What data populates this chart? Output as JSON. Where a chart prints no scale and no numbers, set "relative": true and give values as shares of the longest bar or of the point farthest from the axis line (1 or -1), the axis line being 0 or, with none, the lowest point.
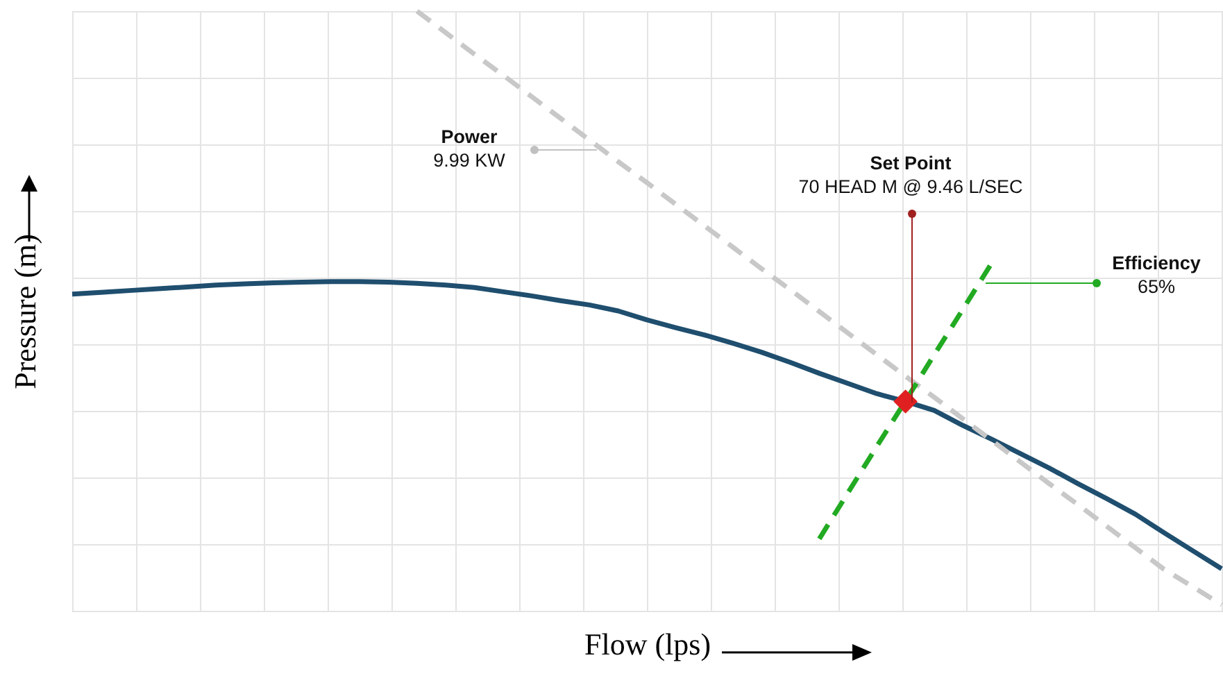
{
  "chart_data": {
    "type": "line",
    "relative": true,
    "xlabel": "Flow (lps)",
    "ylabel": "Pressure (m)",
    "grid": true,
    "categories": [
      null,
      null,
      null,
      null,
      null,
      null,
      null,
      null,
      null,
      null,
      null,
      null,
      null,
      null,
      null,
      null,
      null,
      null,
      null,
      null,
      null,
      null,
      null,
      null,
      null,
      null,
      null,
      null,
      null,
      null,
      null,
      null,
      null,
      null,
      null,
      null,
      null,
      null,
      null,
      null,
      null
    ],
    "series": [
      {
        "color": "#1f4e6e",
        "values": [
          0.528,
          0.531,
          0.534,
          0.537,
          0.54,
          0.543,
          0.545,
          0.547,
          0.548,
          0.549,
          0.549,
          0.548,
          0.546,
          0.543,
          0.539,
          0.532,
          0.525,
          0.517,
          0.51,
          0.5,
          0.485,
          0.472,
          0.46,
          0.446,
          0.431,
          0.414,
          0.396,
          0.379,
          0.362,
          0.349,
          0.334,
          0.309,
          0.286,
          0.262,
          0.238,
          0.212,
          0.187,
          0.161,
          0.13,
          0.1,
          0.07
        ]
      },
      {
        "line_style": "dashed",
        "color": "#c8c8c8",
        "values": [
          null,
          null,
          null,
          null,
          null,
          null,
          null,
          null,
          null,
          null,
          null,
          null,
          1,
          0.964,
          0.928,
          0.893,
          0.857,
          0.821,
          0.785,
          0.749,
          0.714,
          0.678,
          0.642,
          0.606,
          0.57,
          0.535,
          0.499,
          0.463,
          0.427,
          0.391,
          0.356,
          0.32,
          0.284,
          0.248,
          0.212,
          0.177,
          0.141,
          0.105,
          0.069,
          0.04,
          0.01
        ]
      },
      {
        "line_style": "dashed",
        "color": "#22aa22",
        "values": [
          null,
          null,
          null,
          null,
          null,
          null,
          null,
          null,
          null,
          null,
          null,
          null,
          null,
          null,
          null,
          null,
          null,
          null,
          null,
          null,
          null,
          null,
          null,
          null,
          null,
          null,
          0.12,
          0.197,
          0.274,
          0.35,
          0.427,
          0.503,
          0.58,
          null,
          null,
          null,
          null,
          null,
          null,
          null,
          null
        ]
      },
      {
        "marker": "diamond",
        "color": "#e02020",
        "values": [
          null,
          null,
          null,
          null,
          null,
          null,
          null,
          null,
          null,
          null,
          null,
          null,
          null,
          null,
          null,
          null,
          null,
          null,
          null,
          null,
          null,
          null,
          null,
          null,
          null,
          null,
          null,
          null,
          null,
          0.349,
          null,
          null,
          null,
          null,
          null,
          null,
          null,
          null,
          null,
          null,
          null
        ]
      }
    ],
    "annotations": [
      "Power\n9.99 KW",
      "Set Point\n70 HEAD M @ 9.46 L/SEC",
      "Efficiency\n65%"
    ]
  }
}
